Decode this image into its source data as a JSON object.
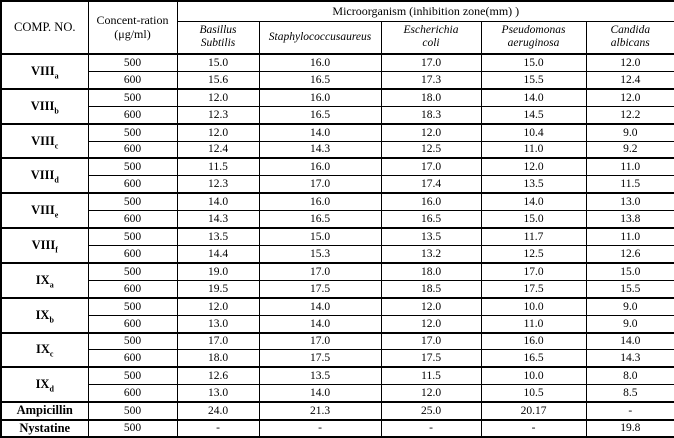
{
  "table": {
    "header": {
      "comp_no": "COMP. NO.",
      "concentration_line1": "Concent-ration",
      "concentration_line2": "(μg/ml)",
      "microorganism_title": "Microorganism (inhibition zone(mm) )",
      "organisms": [
        [
          "Basillus",
          "Subtilis"
        ],
        [
          "Staphylococcusaureus"
        ],
        [
          "Escherichia",
          "coli"
        ],
        [
          "Pseudomonas",
          "aeruginosa"
        ],
        [
          "Candida",
          "albicans"
        ]
      ]
    },
    "groups": [
      {
        "base": "VIII",
        "sub": "a",
        "rows": [
          {
            "conc": "500",
            "values": [
              "15.0",
              "16.0",
              "17.0",
              "15.0",
              "12.0"
            ]
          },
          {
            "conc": "600",
            "values": [
              "15.6",
              "16.5",
              "17.3",
              "15.5",
              "12.4"
            ]
          }
        ]
      },
      {
        "base": "VIII",
        "sub": "b",
        "rows": [
          {
            "conc": "500",
            "values": [
              "12.0",
              "16.0",
              "18.0",
              "14.0",
              "12.0"
            ]
          },
          {
            "conc": "600",
            "values": [
              "12.3",
              "16.5",
              "18.3",
              "14.5",
              "12.2"
            ]
          }
        ]
      },
      {
        "base": "VIII",
        "sub": "c",
        "rows": [
          {
            "conc": "500",
            "values": [
              "12.0",
              "14.0",
              "12.0",
              "10.4",
              "9.0"
            ]
          },
          {
            "conc": "600",
            "values": [
              "12.4",
              "14.3",
              "12.5",
              "11.0",
              "9.2"
            ]
          }
        ]
      },
      {
        "base": "VIII",
        "sub": "d",
        "rows": [
          {
            "conc": "500",
            "values": [
              "11.5",
              "16.0",
              "17.0",
              "12.0",
              "11.0"
            ]
          },
          {
            "conc": "600",
            "values": [
              "12.3",
              "17.0",
              "17.4",
              "13.5",
              "11.5"
            ]
          }
        ]
      },
      {
        "base": "VIII",
        "sub": "e",
        "rows": [
          {
            "conc": "500",
            "values": [
              "14.0",
              "16.0",
              "16.0",
              "14.0",
              "13.0"
            ]
          },
          {
            "conc": "600",
            "values": [
              "14.3",
              "16.5",
              "16.5",
              "15.0",
              "13.8"
            ]
          }
        ]
      },
      {
        "base": "VIII",
        "sub": "f",
        "rows": [
          {
            "conc": "500",
            "values": [
              "13.5",
              "15.0",
              "13.5",
              "11.7",
              "11.0"
            ]
          },
          {
            "conc": "600",
            "values": [
              "14.4",
              "15.3",
              "13.2",
              "12.5",
              "12.6"
            ]
          }
        ]
      },
      {
        "base": "IX",
        "sub": "a",
        "rows": [
          {
            "conc": "500",
            "values": [
              "19.0",
              "17.0",
              "18.0",
              "17.0",
              "15.0"
            ]
          },
          {
            "conc": "600",
            "values": [
              "19.5",
              "17.5",
              "18.5",
              "17.5",
              "15.5"
            ]
          }
        ]
      },
      {
        "base": "IX",
        "sub": "b",
        "rows": [
          {
            "conc": "500",
            "values": [
              "12.0",
              "14.0",
              "12.0",
              "10.0",
              "9.0"
            ]
          },
          {
            "conc": "600",
            "values": [
              "13.0",
              "14.0",
              "12.0",
              "11.0",
              "9.0"
            ]
          }
        ]
      },
      {
        "base": "IX",
        "sub": "c",
        "rows": [
          {
            "conc": "500",
            "values": [
              "17.0",
              "17.0",
              "17.0",
              "16.0",
              "14.0"
            ]
          },
          {
            "conc": "600",
            "values": [
              "18.0",
              "17.5",
              "17.5",
              "16.5",
              "14.3"
            ]
          }
        ]
      },
      {
        "base": "IX",
        "sub": "d",
        "rows": [
          {
            "conc": "500",
            "values": [
              "12.6",
              "13.5",
              "11.5",
              "10.0",
              "8.0"
            ]
          },
          {
            "conc": "600",
            "values": [
              "13.0",
              "14.0",
              "12.0",
              "10.5",
              "8.5"
            ]
          }
        ]
      },
      {
        "base": "Ampicillin",
        "sub": "",
        "rows": [
          {
            "conc": "500",
            "values": [
              "24.0",
              "21.3",
              "25.0",
              "20.17",
              "-"
            ]
          }
        ]
      },
      {
        "base": "Nystatine",
        "sub": "",
        "rows": [
          {
            "conc": "500",
            "values": [
              "-",
              "-",
              "-",
              "-",
              "19.8"
            ]
          }
        ]
      }
    ]
  }
}
